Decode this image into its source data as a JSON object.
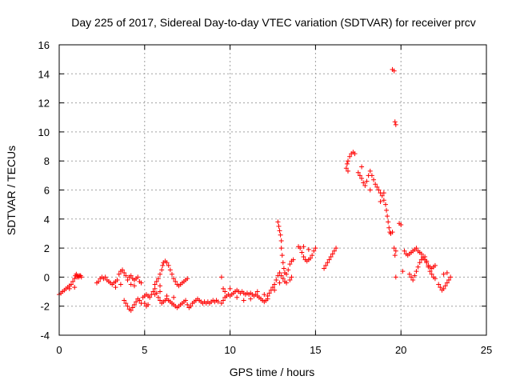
{
  "chart_data": {
    "type": "scatter",
    "title": "Day 225 of 2017, Sidereal Day-to-day VTEC variation (SDTVAR) for receiver prcv",
    "xlabel": "GPS time / hours",
    "ylabel": "SDTVAR / TECUs",
    "xlim": [
      0,
      25
    ],
    "ylim": [
      -4,
      16
    ],
    "x_ticks": [
      0,
      5,
      10,
      15,
      20,
      25
    ],
    "y_ticks": [
      -4,
      -2,
      0,
      2,
      4,
      6,
      8,
      10,
      12,
      14,
      16
    ],
    "grid": true,
    "marker": "+",
    "color": "#ff0000",
    "series": [
      {
        "name": "SDTVAR",
        "points": [
          [
            0.0,
            -1.2
          ],
          [
            0.1,
            -1.1
          ],
          [
            0.2,
            -1.0
          ],
          [
            0.3,
            -0.9
          ],
          [
            0.4,
            -0.8
          ],
          [
            0.5,
            -0.7
          ],
          [
            0.6,
            -0.6
          ],
          [
            0.7,
            -0.5
          ],
          [
            0.8,
            -0.3
          ],
          [
            0.9,
            -0.1
          ],
          [
            0.95,
            0.1
          ],
          [
            1.0,
            0.2
          ],
          [
            1.05,
            0.0
          ],
          [
            1.1,
            0.1
          ],
          [
            1.15,
            0.0
          ],
          [
            1.2,
            0.1
          ],
          [
            1.25,
            0.1
          ],
          [
            1.3,
            0.0
          ],
          [
            0.9,
            -0.7
          ],
          [
            0.6,
            -0.8
          ],
          [
            2.2,
            -0.4
          ],
          [
            2.3,
            -0.3
          ],
          [
            2.4,
            -0.1
          ],
          [
            2.5,
            0.0
          ],
          [
            2.6,
            -0.1
          ],
          [
            2.7,
            0.0
          ],
          [
            2.8,
            -0.2
          ],
          [
            2.9,
            -0.3
          ],
          [
            3.0,
            -0.4
          ],
          [
            3.1,
            -0.5
          ],
          [
            3.2,
            -0.4
          ],
          [
            3.3,
            -0.3
          ],
          [
            3.4,
            -0.2
          ],
          [
            3.5,
            0.2
          ],
          [
            3.6,
            0.4
          ],
          [
            3.7,
            0.5
          ],
          [
            3.8,
            0.3
          ],
          [
            3.9,
            0.1
          ],
          [
            4.0,
            -0.2
          ],
          [
            3.6,
            -0.5
          ],
          [
            3.3,
            -0.7
          ],
          [
            3.8,
            -1.6
          ],
          [
            3.9,
            -1.8
          ],
          [
            4.0,
            -2.0
          ],
          [
            4.1,
            -2.2
          ],
          [
            4.2,
            -2.3
          ],
          [
            4.3,
            -2.1
          ],
          [
            4.4,
            -1.9
          ],
          [
            4.5,
            -1.7
          ],
          [
            4.6,
            -1.5
          ],
          [
            4.7,
            -1.6
          ],
          [
            4.8,
            -1.8
          ],
          [
            4.1,
            0.0
          ],
          [
            4.2,
            0.1
          ],
          [
            4.3,
            -0.1
          ],
          [
            4.4,
            -0.2
          ],
          [
            4.5,
            -0.1
          ],
          [
            4.6,
            0.0
          ],
          [
            4.7,
            -0.3
          ],
          [
            4.8,
            -0.4
          ],
          [
            4.4,
            -0.6
          ],
          [
            4.2,
            -0.5
          ],
          [
            4.9,
            -1.4
          ],
          [
            5.0,
            -1.3
          ],
          [
            5.1,
            -1.2
          ],
          [
            5.2,
            -1.3
          ],
          [
            5.3,
            -1.4
          ],
          [
            5.4,
            -1.2
          ],
          [
            5.5,
            -1.0
          ],
          [
            5.6,
            -0.8
          ],
          [
            5.7,
            -1.1
          ],
          [
            5.8,
            -1.4
          ],
          [
            5.9,
            -1.6
          ],
          [
            6.0,
            -1.8
          ],
          [
            6.1,
            -1.7
          ],
          [
            6.2,
            -1.6
          ],
          [
            6.3,
            -1.5
          ],
          [
            6.4,
            -1.6
          ],
          [
            6.5,
            -1.7
          ],
          [
            6.6,
            -1.8
          ],
          [
            6.7,
            -1.9
          ],
          [
            6.8,
            -2.0
          ],
          [
            6.9,
            -2.1
          ],
          [
            7.0,
            -2.0
          ],
          [
            7.1,
            -1.9
          ],
          [
            7.2,
            -1.8
          ],
          [
            7.3,
            -1.7
          ],
          [
            7.4,
            -1.6
          ],
          [
            5.0,
            -1.8
          ],
          [
            5.1,
            -2.0
          ],
          [
            5.2,
            -1.9
          ],
          [
            5.6,
            -1.2
          ],
          [
            5.9,
            -1.0
          ],
          [
            6.3,
            -1.3
          ],
          [
            6.7,
            -1.4
          ],
          [
            5.6,
            -0.5
          ],
          [
            5.7,
            -0.3
          ],
          [
            5.8,
            -0.1
          ],
          [
            5.9,
            0.2
          ],
          [
            6.0,
            0.5
          ],
          [
            6.05,
            0.8
          ],
          [
            6.1,
            1.0
          ],
          [
            6.2,
            1.1
          ],
          [
            6.3,
            1.0
          ],
          [
            6.4,
            0.8
          ],
          [
            6.5,
            0.5
          ],
          [
            6.6,
            0.2
          ],
          [
            6.7,
            -0.1
          ],
          [
            6.8,
            -0.3
          ],
          [
            6.9,
            -0.5
          ],
          [
            7.0,
            -0.6
          ],
          [
            7.1,
            -0.5
          ],
          [
            7.2,
            -0.4
          ],
          [
            7.3,
            -0.3
          ],
          [
            7.4,
            -0.2
          ],
          [
            7.5,
            -0.1
          ],
          [
            5.9,
            -0.6
          ],
          [
            7.5,
            -1.9
          ],
          [
            7.6,
            -2.1
          ],
          [
            7.7,
            -2.0
          ],
          [
            7.8,
            -1.8
          ],
          [
            7.9,
            -1.7
          ],
          [
            8.0,
            -1.6
          ],
          [
            8.1,
            -1.5
          ],
          [
            8.2,
            -1.6
          ],
          [
            8.3,
            -1.7
          ],
          [
            8.4,
            -1.8
          ],
          [
            8.5,
            -1.7
          ],
          [
            8.6,
            -1.8
          ],
          [
            8.7,
            -1.7
          ],
          [
            8.8,
            -1.8
          ],
          [
            8.9,
            -1.7
          ],
          [
            9.0,
            -1.6
          ],
          [
            9.1,
            -1.7
          ],
          [
            9.2,
            -1.6
          ],
          [
            9.3,
            -1.7
          ],
          [
            9.5,
            0.0
          ],
          [
            9.5,
            -1.8
          ],
          [
            9.6,
            -1.6
          ],
          [
            9.7,
            -1.4
          ],
          [
            9.8,
            -1.3
          ],
          [
            9.9,
            -1.2
          ],
          [
            10.0,
            -1.3
          ],
          [
            10.1,
            -1.2
          ],
          [
            10.2,
            -1.1
          ],
          [
            10.3,
            -1.0
          ],
          [
            10.4,
            -0.9
          ],
          [
            10.5,
            -1.0
          ],
          [
            10.6,
            -1.1
          ],
          [
            10.7,
            -1.0
          ],
          [
            10.8,
            -1.1
          ],
          [
            10.9,
            -1.2
          ],
          [
            11.0,
            -1.1
          ],
          [
            11.1,
            -1.2
          ],
          [
            11.2,
            -1.1
          ],
          [
            11.3,
            -1.2
          ],
          [
            11.4,
            -1.3
          ],
          [
            11.5,
            -1.2
          ],
          [
            11.6,
            -1.3
          ],
          [
            11.7,
            -1.4
          ],
          [
            11.8,
            -1.5
          ],
          [
            11.9,
            -1.6
          ],
          [
            12.0,
            -1.7
          ],
          [
            12.1,
            -1.6
          ],
          [
            12.2,
            -1.5
          ],
          [
            9.6,
            -0.8
          ],
          [
            9.7,
            -1.0
          ],
          [
            10.0,
            -0.8
          ],
          [
            10.4,
            -1.4
          ],
          [
            10.8,
            -1.6
          ],
          [
            11.2,
            -1.5
          ],
          [
            11.6,
            -1.0
          ],
          [
            12.0,
            -1.2
          ],
          [
            12.2,
            -1.3
          ],
          [
            12.3,
            -1.1
          ],
          [
            12.4,
            -0.9
          ],
          [
            12.5,
            -0.7
          ],
          [
            12.6,
            -0.5
          ],
          [
            12.7,
            -0.2
          ],
          [
            12.8,
            0.1
          ],
          [
            12.9,
            0.3
          ],
          [
            13.0,
            0.1
          ],
          [
            13.1,
            -0.1
          ],
          [
            13.2,
            -0.3
          ],
          [
            13.3,
            -0.4
          ],
          [
            12.6,
            -0.9
          ],
          [
            12.9,
            -0.4
          ],
          [
            12.8,
            3.8
          ],
          [
            12.85,
            3.5
          ],
          [
            12.9,
            3.2
          ],
          [
            12.95,
            2.9
          ],
          [
            13.0,
            2.5
          ],
          [
            13.0,
            2.0
          ],
          [
            13.05,
            1.5
          ],
          [
            13.1,
            1.0
          ],
          [
            13.15,
            0.6
          ],
          [
            13.2,
            0.3
          ],
          [
            13.3,
            0.2
          ],
          [
            13.4,
            0.5
          ],
          [
            13.5,
            0.9
          ],
          [
            13.6,
            1.1
          ],
          [
            13.7,
            1.2
          ],
          [
            13.6,
            0.0
          ],
          [
            13.5,
            -0.2
          ],
          [
            14.0,
            2.1
          ],
          [
            14.1,
            2.0
          ],
          [
            14.2,
            1.7
          ],
          [
            14.3,
            1.4
          ],
          [
            14.4,
            1.2
          ],
          [
            14.5,
            1.1
          ],
          [
            14.6,
            1.2
          ],
          [
            14.7,
            1.3
          ],
          [
            14.8,
            1.5
          ],
          [
            14.9,
            1.8
          ],
          [
            15.0,
            2.0
          ],
          [
            14.3,
            2.1
          ],
          [
            14.6,
            1.9
          ],
          [
            15.5,
            0.6
          ],
          [
            15.6,
            0.8
          ],
          [
            15.7,
            1.0
          ],
          [
            15.8,
            1.2
          ],
          [
            15.9,
            1.4
          ],
          [
            16.0,
            1.6
          ],
          [
            16.1,
            1.8
          ],
          [
            16.2,
            2.0
          ],
          [
            16.8,
            7.5
          ],
          [
            16.85,
            7.8
          ],
          [
            16.9,
            8.0
          ],
          [
            17.0,
            8.3
          ],
          [
            17.1,
            8.5
          ],
          [
            17.2,
            8.6
          ],
          [
            17.3,
            8.5
          ],
          [
            16.9,
            7.3
          ],
          [
            17.5,
            7.2
          ],
          [
            17.6,
            7.0
          ],
          [
            17.7,
            6.8
          ],
          [
            17.8,
            6.5
          ],
          [
            17.9,
            6.3
          ],
          [
            18.0,
            6.6
          ],
          [
            18.1,
            7.0
          ],
          [
            18.2,
            7.3
          ],
          [
            18.3,
            7.0
          ],
          [
            18.4,
            6.7
          ],
          [
            18.5,
            6.4
          ],
          [
            17.7,
            7.6
          ],
          [
            18.2,
            6.0
          ],
          [
            18.6,
            6.2
          ],
          [
            18.7,
            6.0
          ],
          [
            18.8,
            5.8
          ],
          [
            18.9,
            5.6
          ],
          [
            19.0,
            5.3
          ],
          [
            19.1,
            5.0
          ],
          [
            19.15,
            4.6
          ],
          [
            19.2,
            4.2
          ],
          [
            19.25,
            3.8
          ],
          [
            19.3,
            3.4
          ],
          [
            19.35,
            3.1
          ],
          [
            19.4,
            3.0
          ],
          [
            19.5,
            3.1
          ],
          [
            18.8,
            5.2
          ],
          [
            19.0,
            5.8
          ],
          [
            19.5,
            14.3
          ],
          [
            19.6,
            14.2
          ],
          [
            19.65,
            10.7
          ],
          [
            19.7,
            10.5
          ],
          [
            19.6,
            2.0
          ],
          [
            19.65,
            1.5
          ],
          [
            19.7,
            1.8
          ],
          [
            19.7,
            0.0
          ],
          [
            19.9,
            3.7
          ],
          [
            20.0,
            3.6
          ],
          [
            20.1,
            0.4
          ],
          [
            20.2,
            1.8
          ],
          [
            20.3,
            1.6
          ],
          [
            20.4,
            1.5
          ],
          [
            20.5,
            1.6
          ],
          [
            20.6,
            1.7
          ],
          [
            20.7,
            1.8
          ],
          [
            20.8,
            1.9
          ],
          [
            20.9,
            2.0
          ],
          [
            21.0,
            1.8
          ],
          [
            21.1,
            1.7
          ],
          [
            21.2,
            1.6
          ],
          [
            21.3,
            1.4
          ],
          [
            21.4,
            1.2
          ],
          [
            21.5,
            1.0
          ],
          [
            21.6,
            0.8
          ],
          [
            21.7,
            0.7
          ],
          [
            21.8,
            0.6
          ],
          [
            21.9,
            0.7
          ],
          [
            22.0,
            0.8
          ],
          [
            20.5,
            0.2
          ],
          [
            20.6,
            0.0
          ],
          [
            20.7,
            -0.2
          ],
          [
            20.8,
            0.1
          ],
          [
            20.9,
            0.4
          ],
          [
            21.0,
            0.7
          ],
          [
            21.1,
            1.0
          ],
          [
            21.2,
            1.2
          ],
          [
            21.3,
            1.3
          ],
          [
            21.4,
            1.4
          ],
          [
            21.5,
            1.1
          ],
          [
            21.6,
            0.7
          ],
          [
            21.7,
            0.4
          ],
          [
            21.8,
            0.2
          ],
          [
            21.9,
            0.0
          ],
          [
            22.0,
            -0.1
          ],
          [
            22.2,
            -0.5
          ],
          [
            22.3,
            -0.7
          ],
          [
            22.4,
            -0.9
          ],
          [
            22.5,
            -0.8
          ],
          [
            22.6,
            -0.6
          ],
          [
            22.7,
            -0.4
          ],
          [
            22.8,
            -0.2
          ],
          [
            22.9,
            0.0
          ],
          [
            22.5,
            0.2
          ],
          [
            22.7,
            0.3
          ]
        ]
      }
    ]
  }
}
